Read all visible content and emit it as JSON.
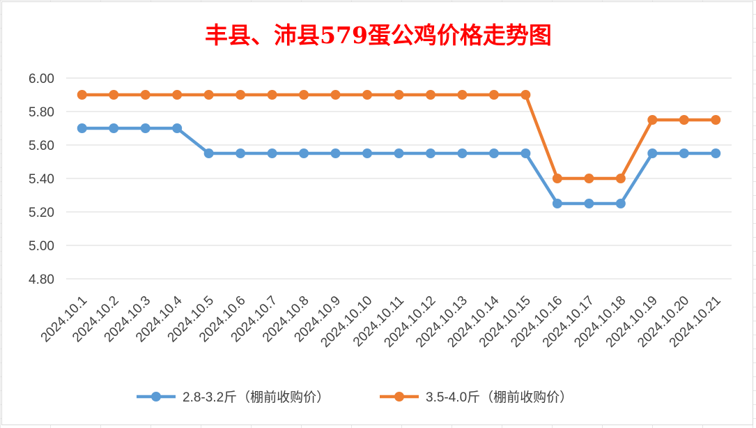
{
  "chart_data": {
    "type": "line",
    "title": "丰县、沛县579蛋公鸡价格走势图",
    "xlabel": "",
    "ylabel": "",
    "ylim": [
      4.8,
      6.0
    ],
    "yticks": [
      "4.80",
      "5.00",
      "5.20",
      "5.40",
      "5.60",
      "5.80",
      "6.00"
    ],
    "grid": true,
    "legend_position": "bottom",
    "categories": [
      "2024.10.1",
      "2024.10.2",
      "2024.10.3",
      "2024.10.4",
      "2024.10.5",
      "2024.10.6",
      "2024.10.7",
      "2024.10.8",
      "2024.10.9",
      "2024.10.10",
      "2024.10.11",
      "2024.10.12",
      "2024.10.13",
      "2024.10.14",
      "2024.10.15",
      "2024.10.16",
      "2024.10.17",
      "2024.10.18",
      "2024.10.19",
      "2024.10.20",
      "2024.10.21"
    ],
    "series": [
      {
        "name": "2.8-3.2斤（棚前收购价）",
        "color": "#5b9bd5",
        "values": [
          5.7,
          5.7,
          5.7,
          5.7,
          5.55,
          5.55,
          5.55,
          5.55,
          5.55,
          5.55,
          5.55,
          5.55,
          5.55,
          5.55,
          5.55,
          5.25,
          5.25,
          5.25,
          5.55,
          5.55,
          5.55
        ]
      },
      {
        "name": "3.5-4.0斤（棚前收购价）",
        "color": "#ed7d31",
        "values": [
          5.9,
          5.9,
          5.9,
          5.9,
          5.9,
          5.9,
          5.9,
          5.9,
          5.9,
          5.9,
          5.9,
          5.9,
          5.9,
          5.9,
          5.9,
          5.4,
          5.4,
          5.4,
          5.75,
          5.75,
          5.75
        ]
      }
    ]
  }
}
